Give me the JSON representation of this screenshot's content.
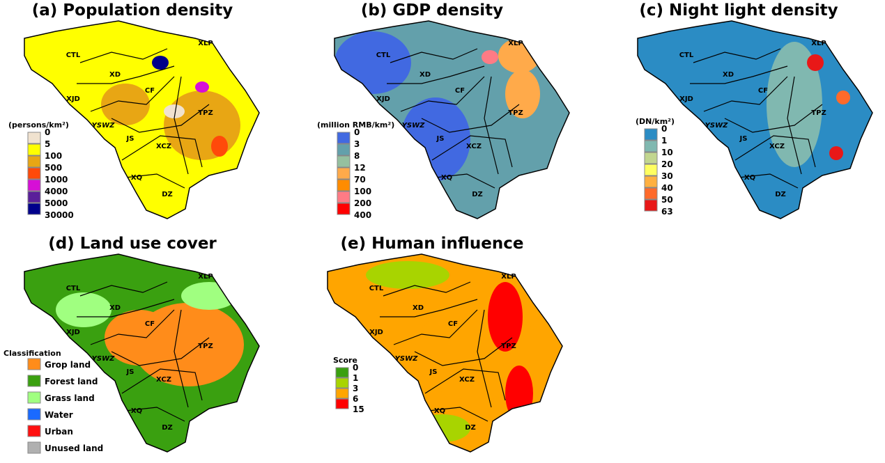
{
  "panels": [
    {
      "title": "(a) Population density",
      "base_color": "#ffff00",
      "legend_title": "(persons/km²)",
      "legend": [
        {
          "label": "0",
          "color": "#f0e2cf"
        },
        {
          "label": "5",
          "color": "#ffff00"
        },
        {
          "label": "100",
          "color": "#e8a614"
        },
        {
          "label": "500",
          "color": "#ff4a0a"
        },
        {
          "label": "1000",
          "color": "#d60fd6"
        },
        {
          "label": "4000",
          "color": "#5a1f9a"
        },
        {
          "label": "5000",
          "color": "#00008b"
        },
        {
          "label": "30000",
          "color": ""
        }
      ]
    },
    {
      "title": "(b) GDP density",
      "base_color": "#63a0ab",
      "legend_title": "(million RMB/km²)",
      "legend": [
        {
          "label": "0",
          "color": "#4169e1"
        },
        {
          "label": "3",
          "color": "#63a0ab"
        },
        {
          "label": "8",
          "color": "#95c09f"
        },
        {
          "label": "12",
          "color": "#ffaa4a"
        },
        {
          "label": "70",
          "color": "#ff8c00"
        },
        {
          "label": "100",
          "color": "#ff7b85"
        },
        {
          "label": "200",
          "color": "#ff0000"
        },
        {
          "label": "400",
          "color": ""
        }
      ]
    },
    {
      "title": "(c) Night light density",
      "base_color": "#2b8cc4",
      "legend_title": "(DN/km²)",
      "legend": [
        {
          "label": "0",
          "color": "#2b8cc4"
        },
        {
          "label": "1",
          "color": "#80b8b0"
        },
        {
          "label": "10",
          "color": "#c2d68f"
        },
        {
          "label": "20",
          "color": "#ffff60"
        },
        {
          "label": "30",
          "color": "#ffb040"
        },
        {
          "label": "40",
          "color": "#ff6a2a"
        },
        {
          "label": "50",
          "color": "#e81818"
        },
        {
          "label": "63",
          "color": ""
        }
      ]
    },
    {
      "title": "(d) Land use cover",
      "base_color": "#3aa010",
      "legend_title": "Classification",
      "legend": [
        {
          "label": "Grop land",
          "color": "#ff8c1a"
        },
        {
          "label": "Forest land",
          "color": "#3aa010"
        },
        {
          "label": "Grass land",
          "color": "#a0ff80"
        },
        {
          "label": "Water",
          "color": "#1a6aff"
        },
        {
          "label": "Urban",
          "color": "#ff1010"
        },
        {
          "label": "Unused land",
          "color": "#b0b0b0"
        }
      ]
    },
    {
      "title": "(e) Human influence",
      "base_color": "#ffa500",
      "legend_title": "Score",
      "legend": [
        {
          "label": "0",
          "color": "#3aa010"
        },
        {
          "label": "1",
          "color": "#a8d400"
        },
        {
          "label": "3",
          "color": "#ffa500"
        },
        {
          "label": "6",
          "color": "#ff0000"
        },
        {
          "label": "15",
          "color": ""
        }
      ]
    }
  ],
  "regions": [
    "CTL",
    "XLP",
    "XD",
    "XJD",
    "CF",
    "TPZ",
    "YSWZ",
    "JS",
    "XCZ",
    "XQ",
    "DZ"
  ]
}
